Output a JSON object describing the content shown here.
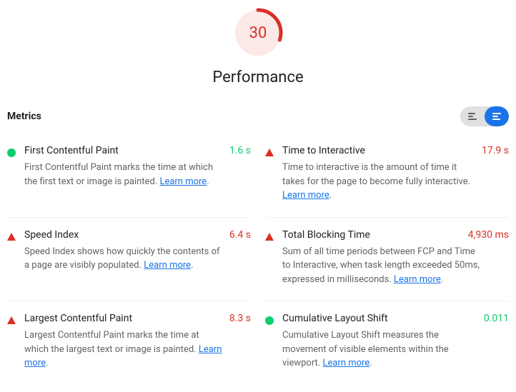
{
  "colors": {
    "red": "#d93025",
    "orange": "#ea8600",
    "green": "#0cce6b",
    "blue": "#1a73e8",
    "gauge_bg": "#fce8e6",
    "toggle_bg": "#e0e0e0",
    "gray_icon": "#5f6368"
  },
  "gauge": {
    "score": "30",
    "score_color": "#d93025",
    "arc_percent": 30,
    "arc_color": "#d93025"
  },
  "page_title": "Performance",
  "metrics_label": "Metrics",
  "learn_more_text": "Learn more",
  "metrics": [
    {
      "status": "good",
      "status_shape": "circle",
      "status_color": "#0cce6b",
      "name": "First Contentful Paint",
      "value": "1.6 s",
      "value_color": "#0cce6b",
      "description": "First Contentful Paint marks the time at which the first text or image is painted. "
    },
    {
      "status": "bad",
      "status_shape": "triangle",
      "status_color": "#d93025",
      "name": "Time to Interactive",
      "value": "17.9 s",
      "value_color": "#d93025",
      "description": "Time to interactive is the amount of time it takes for the page to become fully interactive. "
    },
    {
      "status": "bad",
      "status_shape": "triangle",
      "status_color": "#d93025",
      "name": "Speed Index",
      "value": "6.4 s",
      "value_color": "#d93025",
      "description": "Speed Index shows how quickly the contents of a page are visibly populated. "
    },
    {
      "status": "bad",
      "status_shape": "triangle",
      "status_color": "#d93025",
      "name": "Total Blocking Time",
      "value": "4,930 ms",
      "value_color": "#d93025",
      "description": "Sum of all time periods between FCP and Time to Interactive, when task length exceeded 50ms, expressed in milliseconds. "
    },
    {
      "status": "bad",
      "status_shape": "triangle",
      "status_color": "#d93025",
      "name": "Largest Contentful Paint",
      "value": "8.3 s",
      "value_color": "#d93025",
      "description": "Largest Contentful Paint marks the time at which the largest text or image is painted. "
    },
    {
      "status": "good",
      "status_shape": "circle",
      "status_color": "#0cce6b",
      "name": "Cumulative Layout Shift",
      "value": "0.011",
      "value_color": "#0cce6b",
      "description": "Cumulative Layout Shift measures the movement of visible elements within the viewport. "
    }
  ]
}
